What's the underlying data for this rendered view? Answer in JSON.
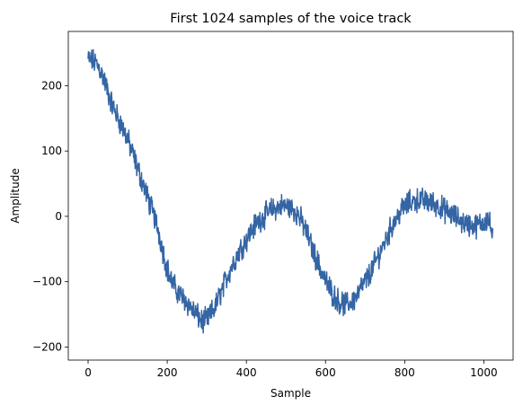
{
  "chart_data": {
    "type": "line",
    "title": "First 1024 samples of the voice track",
    "xlabel": "Sample",
    "ylabel": "Amplitude",
    "xlim": [
      -50,
      1074
    ],
    "ylim": [
      -220,
      283
    ],
    "xticks": [
      0,
      200,
      400,
      600,
      800,
      1000
    ],
    "yticks": [
      -200,
      -100,
      0,
      100,
      200
    ],
    "xtick_labels": [
      "0",
      "200",
      "400",
      "600",
      "800",
      "1000"
    ],
    "ytick_labels": [
      "−200",
      "−100",
      "0",
      "100",
      "200"
    ],
    "grid": false,
    "legend": "none",
    "sample_count": 1024,
    "series": [
      {
        "name": "voice track",
        "color": "#3465a4",
        "noise_amplitude": 14,
        "x": [
          0,
          10,
          20,
          30,
          40,
          50,
          60,
          70,
          80,
          90,
          100,
          110,
          120,
          130,
          140,
          150,
          160,
          170,
          180,
          190,
          200,
          210,
          220,
          230,
          240,
          250,
          260,
          270,
          280,
          290,
          300,
          310,
          320,
          330,
          340,
          350,
          360,
          370,
          380,
          390,
          400,
          410,
          420,
          430,
          440,
          450,
          460,
          470,
          480,
          490,
          500,
          510,
          520,
          530,
          540,
          550,
          560,
          570,
          580,
          590,
          600,
          610,
          620,
          630,
          640,
          650,
          660,
          670,
          680,
          690,
          700,
          710,
          720,
          730,
          740,
          750,
          760,
          770,
          780,
          790,
          800,
          810,
          820,
          830,
          840,
          850,
          860,
          870,
          880,
          890,
          900,
          910,
          920,
          930,
          940,
          950,
          960,
          970,
          980,
          990,
          1000,
          1010,
          1023
        ],
        "y": [
          240,
          238,
          235,
          225,
          210,
          190,
          172,
          158,
          145,
          132,
          118,
          100,
          82,
          65,
          48,
          30,
          12,
          -5,
          -28,
          -55,
          -80,
          -98,
          -110,
          -118,
          -125,
          -132,
          -140,
          -148,
          -155,
          -162,
          -158,
          -150,
          -140,
          -125,
          -110,
          -95,
          -80,
          -68,
          -55,
          -45,
          -35,
          -25,
          -15,
          -8,
          -2,
          3,
          8,
          12,
          14,
          16,
          16,
          14,
          10,
          3,
          -8,
          -22,
          -38,
          -55,
          -70,
          -85,
          -98,
          -110,
          -120,
          -128,
          -133,
          -135,
          -133,
          -128,
          -120,
          -110,
          -100,
          -90,
          -78,
          -65,
          -52,
          -38,
          -25,
          -12,
          -2,
          8,
          15,
          20,
          23,
          25,
          25,
          24,
          22,
          20,
          17,
          14,
          10,
          6,
          2,
          -2,
          -6,
          -10,
          -12,
          -14,
          -15,
          -12,
          -8,
          -2,
          -30
        ]
      }
    ]
  }
}
